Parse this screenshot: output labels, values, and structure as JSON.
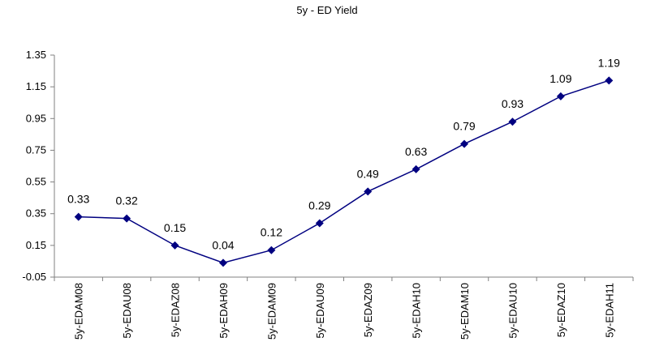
{
  "chart_data": {
    "type": "line",
    "title": "5y - ED Yield",
    "xlabel": "",
    "ylabel": "",
    "categories": [
      "5y-EDAM08",
      "5y-EDAU08",
      "5y-EDAZ08",
      "5y-EDAH09",
      "5y-EDAM09",
      "5y-EDAU09",
      "5y-EDAZ09",
      "5y-EDAH10",
      "5y-EDAM10",
      "5y-EDAU10",
      "5y-EDAZ10",
      "5y-EDAH11"
    ],
    "series": [
      {
        "values": [
          0.33,
          0.32,
          0.15,
          0.04,
          0.12,
          0.29,
          0.49,
          0.63,
          0.79,
          0.93,
          1.09,
          1.19
        ],
        "color": "#000080",
        "marker": "diamond"
      }
    ],
    "data_labels": [
      "0.33",
      "0.32",
      "0.15",
      "0.04",
      "0.12",
      "0.29",
      "0.49",
      "0.63",
      "0.79",
      "0.93",
      "1.09",
      "1.19"
    ],
    "yticks": [
      "-0.05",
      "0.15",
      "0.35",
      "0.55",
      "0.75",
      "0.95",
      "1.15",
      "1.35"
    ],
    "ylim": [
      -0.05,
      1.35
    ],
    "grid": false,
    "legend": "none"
  }
}
